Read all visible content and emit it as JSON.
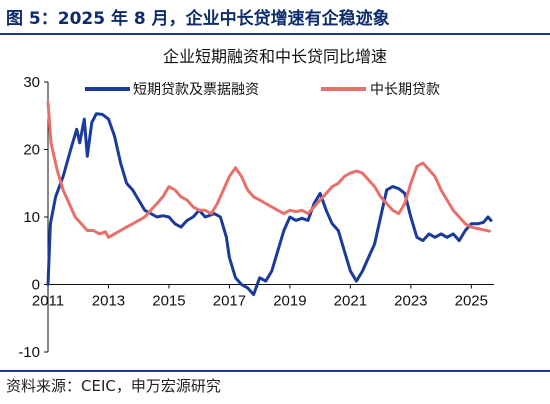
{
  "figure_title": "图 5：2025 年 8 月，企业中长贷增速有企稳迹象",
  "source": "资料来源：CEIC，申万宏源研究",
  "colors": {
    "short_term": "#1a3a9c",
    "mid_long_term": "#e8706a",
    "brand": "#0f2c6d"
  },
  "chart_data": {
    "type": "line",
    "title": "企业短期融资和中长贷同比增速",
    "xlabel": "",
    "ylabel": "",
    "xlim": [
      2011.0,
      2025.75
    ],
    "ylim": [
      -10,
      30
    ],
    "xticks": [
      "2011",
      "2013",
      "2015",
      "2017",
      "2019",
      "2021",
      "2023",
      "2025"
    ],
    "yticks": [
      "-10",
      "0",
      "10",
      "20",
      "30"
    ],
    "legend": "top",
    "series": [
      {
        "name": "短期贷款及票据融资",
        "color": "#1a3a9c",
        "points": [
          [
            2011.0,
            0
          ],
          [
            2011.08,
            9
          ],
          [
            2011.25,
            13
          ],
          [
            2011.5,
            16
          ],
          [
            2011.75,
            20
          ],
          [
            2011.95,
            23
          ],
          [
            2012.05,
            21
          ],
          [
            2012.2,
            24.5
          ],
          [
            2012.3,
            19
          ],
          [
            2012.45,
            24
          ],
          [
            2012.6,
            25.3
          ],
          [
            2012.8,
            25.2
          ],
          [
            2013.0,
            24.5
          ],
          [
            2013.2,
            22
          ],
          [
            2013.4,
            18
          ],
          [
            2013.6,
            15
          ],
          [
            2013.8,
            14
          ],
          [
            2014.0,
            12.5
          ],
          [
            2014.2,
            11
          ],
          [
            2014.4,
            10.5
          ],
          [
            2014.6,
            10
          ],
          [
            2014.8,
            10.2
          ],
          [
            2015.0,
            10
          ],
          [
            2015.2,
            9
          ],
          [
            2015.4,
            8.5
          ],
          [
            2015.6,
            9.5
          ],
          [
            2015.8,
            10
          ],
          [
            2016.0,
            11
          ],
          [
            2016.2,
            10
          ],
          [
            2016.5,
            10.5
          ],
          [
            2016.7,
            10
          ],
          [
            2016.9,
            7
          ],
          [
            2017.0,
            4
          ],
          [
            2017.2,
            1
          ],
          [
            2017.4,
            0
          ],
          [
            2017.6,
            -0.5
          ],
          [
            2017.8,
            -1.5
          ],
          [
            2018.0,
            1
          ],
          [
            2018.2,
            0.5
          ],
          [
            2018.4,
            2
          ],
          [
            2018.6,
            5
          ],
          [
            2018.8,
            8
          ],
          [
            2019.0,
            10
          ],
          [
            2019.2,
            9.5
          ],
          [
            2019.4,
            9.8
          ],
          [
            2019.6,
            9.5
          ],
          [
            2019.8,
            12
          ],
          [
            2020.0,
            13.5
          ],
          [
            2020.2,
            11
          ],
          [
            2020.4,
            9
          ],
          [
            2020.6,
            8
          ],
          [
            2020.8,
            5
          ],
          [
            2021.0,
            2
          ],
          [
            2021.2,
            0.5
          ],
          [
            2021.4,
            2
          ],
          [
            2021.6,
            4
          ],
          [
            2021.8,
            6
          ],
          [
            2022.0,
            10
          ],
          [
            2022.2,
            14
          ],
          [
            2022.4,
            14.5
          ],
          [
            2022.6,
            14.2
          ],
          [
            2022.8,
            13.5
          ],
          [
            2023.0,
            10
          ],
          [
            2023.2,
            7
          ],
          [
            2023.4,
            6.5
          ],
          [
            2023.6,
            7.5
          ],
          [
            2023.8,
            7
          ],
          [
            2024.0,
            7.5
          ],
          [
            2024.2,
            7
          ],
          [
            2024.4,
            7.5
          ],
          [
            2024.6,
            6.5
          ],
          [
            2024.8,
            8
          ],
          [
            2025.0,
            9
          ],
          [
            2025.2,
            9
          ],
          [
            2025.4,
            9.2
          ],
          [
            2025.55,
            10
          ],
          [
            2025.65,
            9.5
          ]
        ]
      },
      {
        "name": "中长期贷款",
        "color": "#e8706a",
        "points": [
          [
            2011.0,
            27
          ],
          [
            2011.1,
            21
          ],
          [
            2011.3,
            17
          ],
          [
            2011.5,
            14
          ],
          [
            2011.7,
            12
          ],
          [
            2011.9,
            10
          ],
          [
            2012.1,
            9
          ],
          [
            2012.3,
            8
          ],
          [
            2012.5,
            8
          ],
          [
            2012.7,
            7.5
          ],
          [
            2012.9,
            7.8
          ],
          [
            2013.0,
            7
          ],
          [
            2013.2,
            7.5
          ],
          [
            2013.4,
            8
          ],
          [
            2013.6,
            8.5
          ],
          [
            2013.8,
            9
          ],
          [
            2014.0,
            9.5
          ],
          [
            2014.2,
            10
          ],
          [
            2014.4,
            11
          ],
          [
            2014.6,
            12
          ],
          [
            2014.8,
            13
          ],
          [
            2015.0,
            14.5
          ],
          [
            2015.2,
            14
          ],
          [
            2015.4,
            13
          ],
          [
            2015.6,
            12.5
          ],
          [
            2015.8,
            11.5
          ],
          [
            2016.0,
            11
          ],
          [
            2016.2,
            11
          ],
          [
            2016.4,
            10.5
          ],
          [
            2016.6,
            12
          ],
          [
            2016.8,
            14
          ],
          [
            2017.0,
            16
          ],
          [
            2017.2,
            17.3
          ],
          [
            2017.4,
            16
          ],
          [
            2017.6,
            14
          ],
          [
            2017.8,
            13
          ],
          [
            2018.0,
            12.5
          ],
          [
            2018.2,
            12
          ],
          [
            2018.4,
            11.5
          ],
          [
            2018.6,
            11
          ],
          [
            2018.8,
            10.5
          ],
          [
            2019.0,
            11
          ],
          [
            2019.2,
            10.8
          ],
          [
            2019.4,
            11
          ],
          [
            2019.6,
            10.5
          ],
          [
            2019.8,
            11.5
          ],
          [
            2020.0,
            12.5
          ],
          [
            2020.2,
            13.5
          ],
          [
            2020.4,
            14.5
          ],
          [
            2020.6,
            15
          ],
          [
            2020.8,
            16
          ],
          [
            2021.0,
            16.5
          ],
          [
            2021.2,
            16.8
          ],
          [
            2021.4,
            16.5
          ],
          [
            2021.6,
            15.5
          ],
          [
            2021.8,
            14.5
          ],
          [
            2022.0,
            13
          ],
          [
            2022.2,
            12
          ],
          [
            2022.4,
            11
          ],
          [
            2022.6,
            10.5
          ],
          [
            2022.8,
            12
          ],
          [
            2023.0,
            15
          ],
          [
            2023.2,
            17.5
          ],
          [
            2023.4,
            18
          ],
          [
            2023.6,
            17
          ],
          [
            2023.8,
            16
          ],
          [
            2024.0,
            14
          ],
          [
            2024.2,
            12.5
          ],
          [
            2024.4,
            11
          ],
          [
            2024.6,
            10
          ],
          [
            2024.8,
            9
          ],
          [
            2025.0,
            8.5
          ],
          [
            2025.2,
            8.3
          ],
          [
            2025.4,
            8.1
          ],
          [
            2025.6,
            7.9
          ]
        ]
      }
    ]
  }
}
